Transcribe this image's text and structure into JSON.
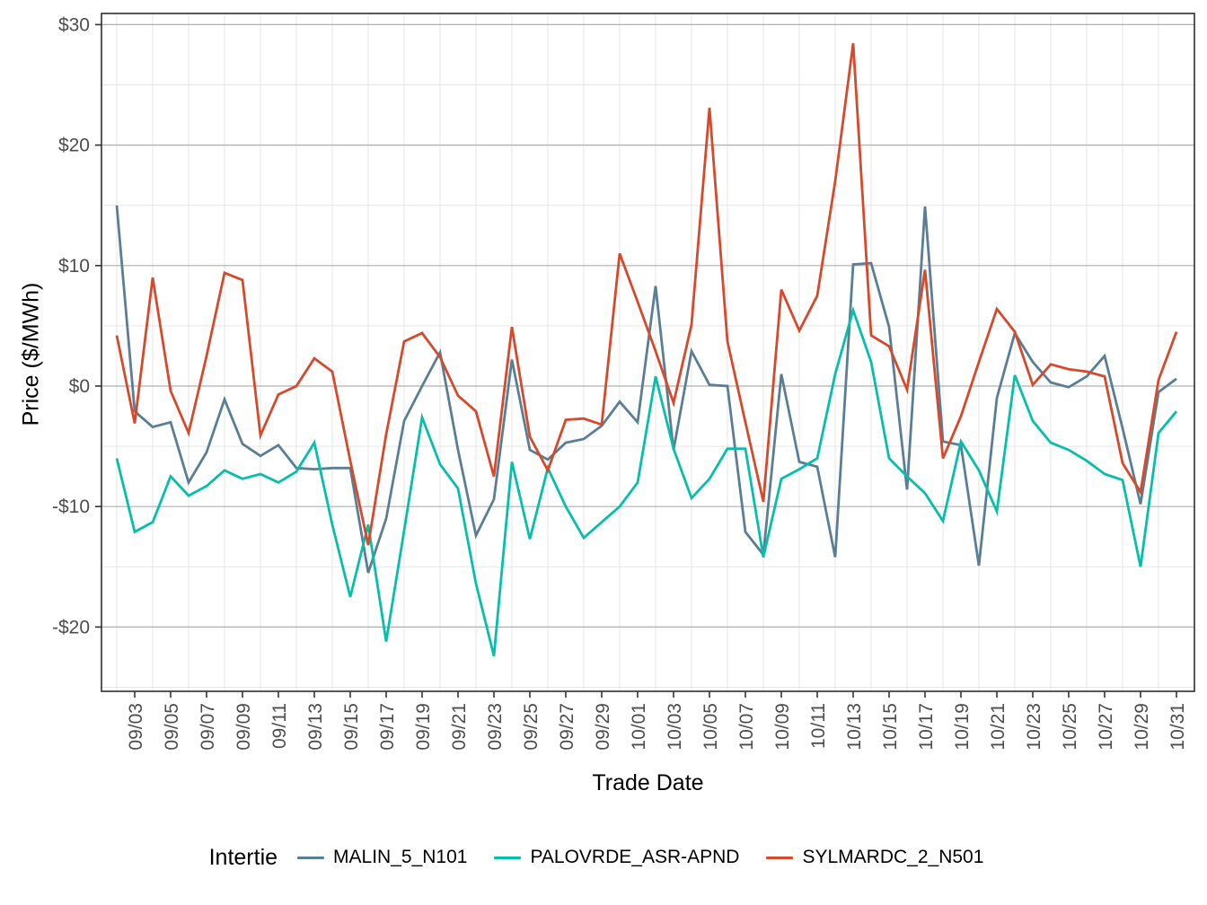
{
  "chart_data": {
    "type": "line",
    "title": "",
    "xlabel": "Trade Date",
    "ylabel": "Price ($/MWh)",
    "legend_title": "Intertie",
    "legend_position": "bottom",
    "grid": "on",
    "ylim": [
      -25.5,
      30.9
    ],
    "x": [
      "09/02",
      "09/03",
      "09/04",
      "09/05",
      "09/06",
      "09/07",
      "09/08",
      "09/09",
      "09/10",
      "09/11",
      "09/12",
      "09/13",
      "09/14",
      "09/15",
      "09/16",
      "09/17",
      "09/18",
      "09/19",
      "09/20",
      "09/21",
      "09/22",
      "09/23",
      "09/24",
      "09/25",
      "09/26",
      "09/27",
      "09/28",
      "09/29",
      "09/30",
      "10/01",
      "10/02",
      "10/03",
      "10/04",
      "10/05",
      "10/06",
      "10/07",
      "10/08",
      "10/09",
      "10/10",
      "10/11",
      "10/12",
      "10/13",
      "10/14",
      "10/15",
      "10/16",
      "10/17",
      "10/18",
      "10/19",
      "10/20",
      "10/21",
      "10/22",
      "10/23",
      "10/24",
      "10/25",
      "10/26",
      "10/27",
      "10/28",
      "10/29",
      "10/30",
      "10/31"
    ],
    "x_tick_labels": [
      "09/03",
      "09/05",
      "09/07",
      "09/09",
      "09/11",
      "09/13",
      "09/15",
      "09/17",
      "09/19",
      "09/21",
      "09/23",
      "09/25",
      "09/27",
      "09/29",
      "10/01",
      "10/03",
      "10/05",
      "10/07",
      "10/09",
      "10/11",
      "10/13",
      "10/15",
      "10/17",
      "10/19",
      "10/21",
      "10/23",
      "10/25",
      "10/27",
      "10/29",
      "10/31"
    ],
    "y_ticks": [
      {
        "value": 30,
        "label": "$30"
      },
      {
        "value": 20,
        "label": "$20"
      },
      {
        "value": 10,
        "label": "$10"
      },
      {
        "value": 0,
        "label": "$0"
      },
      {
        "value": -10,
        "label": "-$10"
      },
      {
        "value": -20,
        "label": "-$20"
      }
    ],
    "y_minor_ticks": [
      25,
      15,
      5,
      -5,
      -15,
      -25
    ],
    "series": [
      {
        "name": "MALIN_5_N101",
        "color": "#5A7E94",
        "values": [
          15.0,
          -2.1,
          -3.4,
          -3.0,
          -8.0,
          -5.5,
          -1.1,
          -4.8,
          -5.8,
          -4.9,
          -6.8,
          -6.9,
          -6.8,
          -6.8,
          -15.5,
          -11.0,
          -2.9,
          0.0,
          2.8,
          -5.3,
          -12.4,
          -9.4,
          2.2,
          -5.3,
          -6.1,
          -4.7,
          -4.4,
          -3.3,
          -1.3,
          -3.0,
          8.3,
          -5.3,
          2.9,
          0.1,
          0.0,
          -12.1,
          -14.0,
          1.0,
          -6.3,
          -6.7,
          -14.2,
          10.1,
          10.2,
          4.9,
          -8.6,
          14.9,
          -4.6,
          -4.9,
          -14.9,
          -1.0,
          4.4,
          2.0,
          0.3,
          -0.1,
          0.8,
          2.5,
          -3.5,
          -9.8,
          -0.5,
          0.6
        ]
      },
      {
        "name": "PALOVRDE_ASR-APND",
        "color": "#06BFAB",
        "values": [
          -6.0,
          -12.1,
          -11.3,
          -7.5,
          -9.1,
          -8.3,
          -7.0,
          -7.7,
          -7.3,
          -8.0,
          -7.1,
          -4.7,
          -11.5,
          -17.5,
          -11.5,
          -21.2,
          -12.0,
          -2.6,
          -6.5,
          -8.5,
          -16.4,
          -22.4,
          -6.3,
          -12.7,
          -6.8,
          -10.0,
          -12.6,
          -11.3,
          -10.0,
          -8.0,
          0.8,
          -5.2,
          -9.3,
          -7.7,
          -5.2,
          -5.2,
          -14.2,
          -7.7,
          -6.9,
          -6.0,
          1.0,
          6.3,
          2.0,
          -6.0,
          -7.5,
          -8.9,
          -11.2,
          -4.6,
          -7.0,
          -10.4,
          0.9,
          -2.9,
          -4.7,
          -5.3,
          -6.2,
          -7.3,
          -7.8,
          -15.0,
          -3.9,
          -2.1
        ]
      },
      {
        "name": "SYLMARDC_2_N501",
        "color": "#D7492B",
        "values": [
          4.2,
          -3.1,
          9.0,
          -0.4,
          -3.9,
          2.5,
          9.4,
          8.8,
          -4.1,
          -0.7,
          0.0,
          2.3,
          1.2,
          -6.2,
          -13.2,
          -4.0,
          3.7,
          4.4,
          2.4,
          -0.8,
          -2.1,
          -7.5,
          4.9,
          -4.2,
          -7.0,
          -2.8,
          -2.7,
          -3.2,
          11.0,
          7.0,
          2.9,
          -1.4,
          5.1,
          23.1,
          3.7,
          -3.0,
          -9.6,
          8.0,
          4.6,
          7.5,
          17.0,
          28.45,
          4.2,
          3.3,
          -0.3,
          9.65,
          -6.0,
          -2.5,
          2.0,
          6.4,
          4.5,
          0.1,
          1.8,
          1.4,
          1.2,
          0.8,
          -6.4,
          -8.8,
          0.5,
          4.5
        ]
      }
    ]
  }
}
